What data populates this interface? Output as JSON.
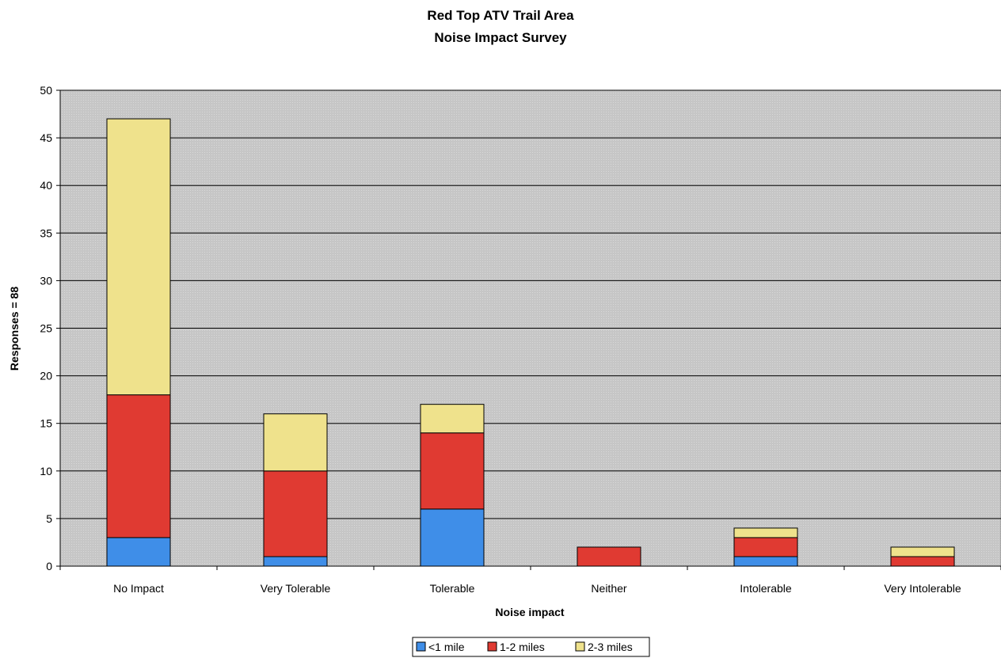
{
  "chart_data": {
    "type": "bar",
    "stacked": true,
    "title": [
      "Red Top ATV Trail Area",
      "Noise Impact Survey"
    ],
    "xlabel": "Noise impact",
    "ylabel": "Responses = 88",
    "ylim": [
      0,
      50
    ],
    "yticks": [
      0,
      5,
      10,
      15,
      20,
      25,
      30,
      35,
      40,
      45,
      50
    ],
    "grid": true,
    "legend": "bottom-center",
    "categories": [
      "No Impact",
      "Very Tolerable",
      "Tolerable",
      "Neither",
      "Intolerable",
      "Very Intolerable"
    ],
    "series": [
      {
        "name": "<1 mile",
        "color": "#3f8ee8",
        "values": [
          3,
          1,
          6,
          0,
          1,
          0
        ]
      },
      {
        "name": "1-2 miles",
        "color": "#e03a32",
        "values": [
          15,
          9,
          8,
          2,
          2,
          1
        ]
      },
      {
        "name": "2-3 miles",
        "color": "#efe28c",
        "values": [
          29,
          6,
          3,
          0,
          1,
          1
        ]
      }
    ],
    "plot_background": "#c8c8c8"
  }
}
